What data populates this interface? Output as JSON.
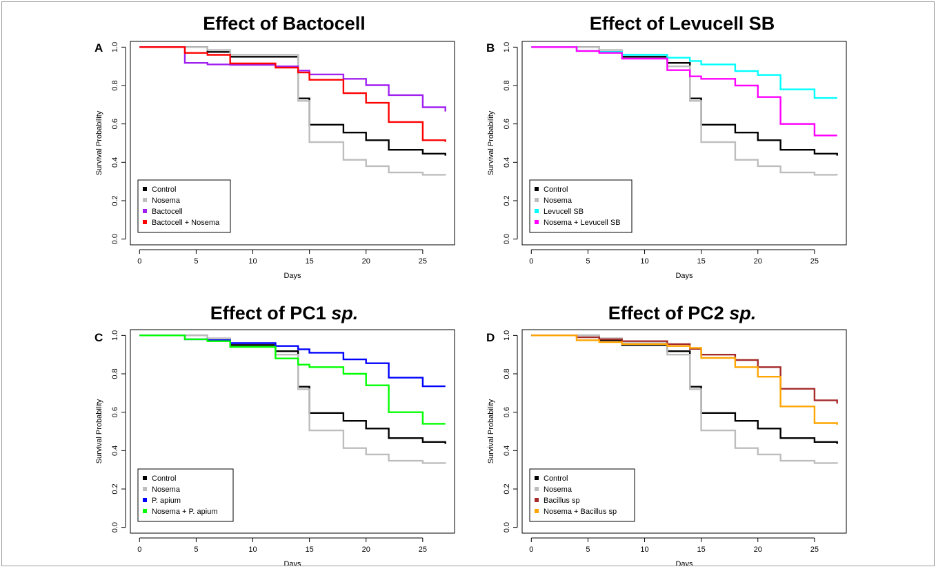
{
  "chart_data": [
    {
      "panel": "A",
      "type": "line",
      "title": "Effect of Bactocell",
      "xlabel": "Days",
      "ylabel": "Survival Probability",
      "xlim": [
        0,
        27
      ],
      "ylim": [
        0,
        1
      ],
      "xticks": [
        0,
        5,
        10,
        15,
        20,
        25
      ],
      "yticks": [
        0.0,
        0.2,
        0.4,
        0.6,
        0.8,
        1.0
      ],
      "legend_position": "bottom-left",
      "series": [
        {
          "name": "Control",
          "color": "#000000",
          "x": [
            0,
            6,
            8,
            14,
            15,
            18,
            20,
            22,
            25,
            27
          ],
          "y": [
            1.0,
            0.975,
            0.95,
            0.733,
            0.596,
            0.555,
            0.515,
            0.465,
            0.445,
            0.435
          ]
        },
        {
          "name": "Nosema",
          "color": "#bdbdbd",
          "x": [
            0,
            6,
            8,
            14,
            15,
            18,
            20,
            22,
            25,
            27
          ],
          "y": [
            1.0,
            0.985,
            0.96,
            0.72,
            0.505,
            0.413,
            0.38,
            0.347,
            0.335,
            0.333
          ]
        },
        {
          "name": "Bactocell",
          "color": "#a020f0",
          "x": [
            0,
            4,
            6,
            8,
            12,
            14,
            15,
            18,
            20,
            22,
            25,
            27
          ],
          "y": [
            1.0,
            0.918,
            0.91,
            0.908,
            0.9,
            0.878,
            0.858,
            0.835,
            0.802,
            0.75,
            0.687,
            0.665
          ]
        },
        {
          "name": "Bactocell + Nosema",
          "color": "#ff0000",
          "x": [
            0,
            4,
            6,
            8,
            12,
            14,
            15,
            18,
            20,
            22,
            25,
            27
          ],
          "y": [
            1.0,
            0.97,
            0.96,
            0.915,
            0.893,
            0.868,
            0.83,
            0.76,
            0.71,
            0.61,
            0.515,
            0.507
          ]
        }
      ]
    },
    {
      "panel": "B",
      "type": "line",
      "title": "Effect of Levucell SB",
      "xlabel": "Days",
      "ylabel": "Survival Probability",
      "xlim": [
        0,
        27
      ],
      "ylim": [
        0,
        1
      ],
      "xticks": [
        0,
        5,
        10,
        15,
        20,
        25
      ],
      "yticks": [
        0.0,
        0.2,
        0.4,
        0.6,
        0.8,
        1.0
      ],
      "legend_position": "bottom-left",
      "series": [
        {
          "name": "Control",
          "color": "#000000",
          "x": [
            0,
            6,
            8,
            12,
            14,
            15,
            18,
            20,
            22,
            25,
            27
          ],
          "y": [
            1.0,
            0.975,
            0.95,
            0.918,
            0.733,
            0.596,
            0.555,
            0.515,
            0.465,
            0.445,
            0.435
          ]
        },
        {
          "name": "Nosema",
          "color": "#bdbdbd",
          "x": [
            0,
            6,
            8,
            12,
            14,
            15,
            18,
            20,
            22,
            25,
            27
          ],
          "y": [
            1.0,
            0.985,
            0.96,
            0.9,
            0.72,
            0.505,
            0.413,
            0.38,
            0.347,
            0.335,
            0.333
          ]
        },
        {
          "name": "Levucell SB",
          "color": "#00ffff",
          "x": [
            0,
            4,
            6,
            8,
            12,
            14,
            15,
            18,
            20,
            22,
            25,
            27
          ],
          "y": [
            1.0,
            0.98,
            0.975,
            0.96,
            0.945,
            0.928,
            0.91,
            0.875,
            0.855,
            0.78,
            0.735,
            0.735
          ]
        },
        {
          "name": "Nosema + Levucell SB",
          "color": "#ff00ff",
          "x": [
            0,
            4,
            6,
            8,
            12,
            14,
            15,
            18,
            20,
            22,
            25,
            27
          ],
          "y": [
            1.0,
            0.98,
            0.97,
            0.94,
            0.88,
            0.848,
            0.835,
            0.8,
            0.74,
            0.6,
            0.54,
            0.54
          ]
        }
      ]
    },
    {
      "panel": "C",
      "type": "line",
      "title": "Effect of PC1 sp.",
      "title_main": "Effect of PC1 ",
      "title_italic": "sp.",
      "xlabel": "Days",
      "ylabel": "Survival Probability",
      "xlim": [
        0,
        27
      ],
      "ylim": [
        0,
        1
      ],
      "xticks": [
        0,
        5,
        10,
        15,
        20,
        25
      ],
      "yticks": [
        0.0,
        0.2,
        0.4,
        0.6,
        0.8,
        1.0
      ],
      "legend_position": "bottom-left",
      "series": [
        {
          "name": "Control",
          "color": "#000000",
          "x": [
            0,
            6,
            8,
            12,
            14,
            15,
            18,
            20,
            22,
            25,
            27
          ],
          "y": [
            1.0,
            0.975,
            0.95,
            0.918,
            0.733,
            0.596,
            0.555,
            0.515,
            0.465,
            0.445,
            0.435
          ]
        },
        {
          "name": "Nosema",
          "color": "#bdbdbd",
          "x": [
            0,
            6,
            8,
            12,
            14,
            15,
            18,
            20,
            22,
            25,
            27
          ],
          "y": [
            1.0,
            0.985,
            0.96,
            0.9,
            0.72,
            0.505,
            0.413,
            0.38,
            0.347,
            0.335,
            0.333
          ]
        },
        {
          "name": "P. apium",
          "color": "#0000ff",
          "x": [
            0,
            4,
            6,
            8,
            12,
            14,
            15,
            18,
            20,
            22,
            25,
            27
          ],
          "y": [
            1.0,
            0.98,
            0.975,
            0.96,
            0.945,
            0.928,
            0.91,
            0.875,
            0.855,
            0.78,
            0.735,
            0.735
          ]
        },
        {
          "name": "Nosema + P. apium",
          "color": "#00ff00",
          "x": [
            0,
            4,
            6,
            8,
            12,
            14,
            15,
            18,
            20,
            22,
            25,
            27
          ],
          "y": [
            1.0,
            0.98,
            0.97,
            0.94,
            0.88,
            0.848,
            0.835,
            0.8,
            0.74,
            0.6,
            0.54,
            0.54
          ]
        }
      ]
    },
    {
      "panel": "D",
      "type": "line",
      "title": "Effect of PC2 sp.",
      "title_main": "Effect of PC2 ",
      "title_italic": "sp.",
      "xlabel": "Days",
      "ylabel": "Survival Probability",
      "xlim": [
        0,
        27
      ],
      "ylim": [
        0,
        1
      ],
      "xticks": [
        0,
        5,
        10,
        15,
        20,
        25
      ],
      "yticks": [
        0.0,
        0.2,
        0.4,
        0.6,
        0.8,
        1.0
      ],
      "legend_position": "bottom-left",
      "series": [
        {
          "name": "Control",
          "color": "#000000",
          "x": [
            0,
            6,
            8,
            12,
            14,
            15,
            18,
            20,
            22,
            25,
            27
          ],
          "y": [
            1.0,
            0.975,
            0.95,
            0.918,
            0.733,
            0.596,
            0.555,
            0.515,
            0.465,
            0.445,
            0.435
          ]
        },
        {
          "name": "Nosema",
          "color": "#bdbdbd",
          "x": [
            0,
            6,
            8,
            12,
            14,
            15,
            18,
            20,
            22,
            25,
            27
          ],
          "y": [
            1.0,
            0.985,
            0.96,
            0.9,
            0.72,
            0.505,
            0.413,
            0.38,
            0.347,
            0.335,
            0.333
          ]
        },
        {
          "name": "Bacillus sp",
          "color": "#a52a2a",
          "x": [
            0,
            4,
            6,
            8,
            12,
            14,
            15,
            18,
            20,
            22,
            25,
            27
          ],
          "y": [
            1.0,
            0.99,
            0.98,
            0.97,
            0.955,
            0.93,
            0.9,
            0.872,
            0.835,
            0.722,
            0.662,
            0.645
          ]
        },
        {
          "name": "Nosema + Bacillus sp",
          "color": "#ffa500",
          "x": [
            0,
            4,
            6,
            8,
            12,
            14,
            15,
            18,
            20,
            22,
            25,
            27
          ],
          "y": [
            1.0,
            0.975,
            0.965,
            0.955,
            0.945,
            0.935,
            0.883,
            0.835,
            0.785,
            0.63,
            0.543,
            0.535
          ]
        }
      ]
    }
  ]
}
